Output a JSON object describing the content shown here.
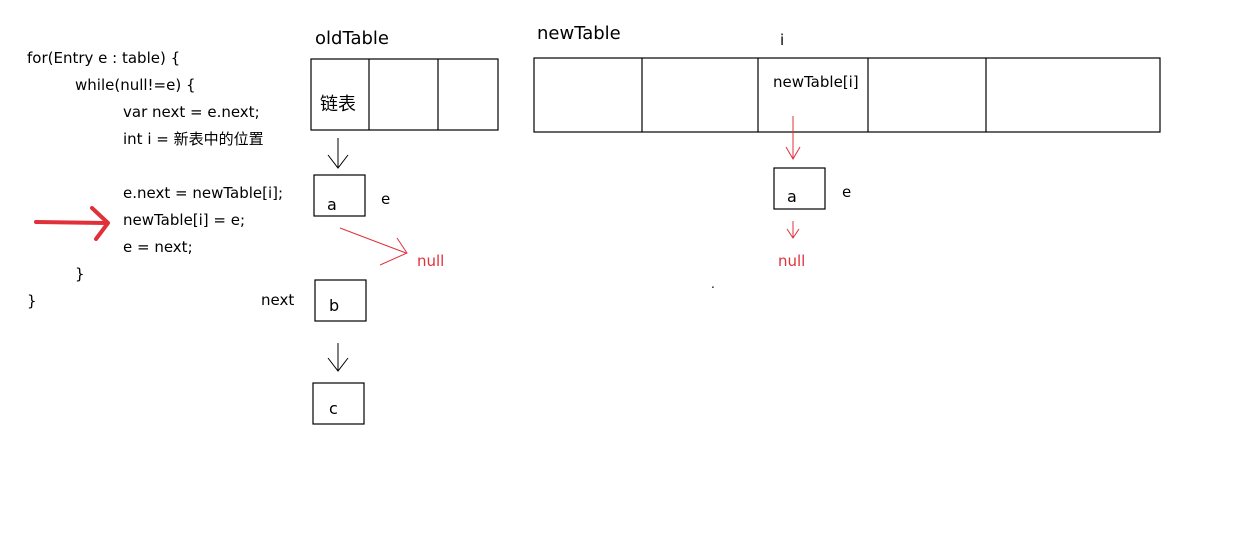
{
  "code": {
    "lines": [
      "for(Entry e : table) {",
      "while(null!=e) {",
      "var next = e.next;",
      "int i = 新表中的位置",
      "e.next = newTable[i];",
      "newTable[i] = e;",
      "e = next;",
      "}",
      "}"
    ]
  },
  "old_table": {
    "title": "oldTable",
    "first_cell_label": "链表",
    "nodes": {
      "a": "a",
      "b": "b",
      "c": "c"
    },
    "pointer_e": "e",
    "pointer_next": "next",
    "null_label": "null"
  },
  "new_table": {
    "title": "newTable",
    "index_label": "i",
    "slot_label": "newTable[i]",
    "node_a": "a",
    "pointer_e": "e",
    "null_label": "null"
  },
  "dot": ".",
  "colors": {
    "accent_red": "#e0303a",
    "stroke": "#000000"
  }
}
